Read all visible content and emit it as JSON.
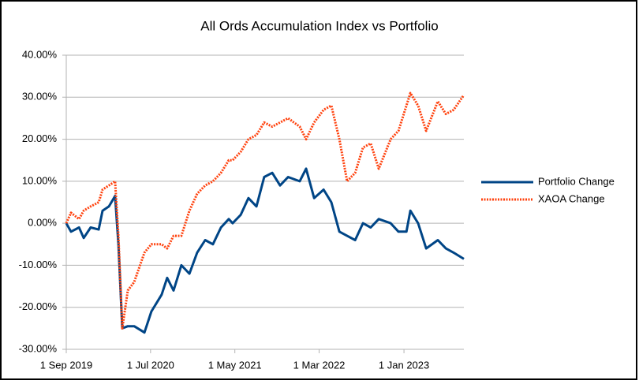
{
  "chart_data": {
    "type": "line",
    "title": "All Ords Accumulation Index vs Portfolio",
    "x": [
      "2019-09-01",
      "2019-09-18",
      "2019-10-17",
      "2019-11-03",
      "2019-11-28",
      "2019-12-27",
      "2020-01-10",
      "2020-02-02",
      "2020-02-24",
      "2020-03-07",
      "2020-03-21",
      "2020-04-10",
      "2020-05-03",
      "2020-06-09",
      "2020-07-04",
      "2020-08-10",
      "2020-08-30",
      "2020-09-22",
      "2020-10-20",
      "2020-11-18",
      "2020-12-16",
      "2021-01-14",
      "2021-02-11",
      "2021-03-12",
      "2021-04-09",
      "2021-04-23",
      "2021-05-22",
      "2021-06-19",
      "2021-07-18",
      "2021-08-15",
      "2021-09-13",
      "2021-10-11",
      "2021-11-09",
      "2021-12-21",
      "2022-01-13",
      "2022-02-11",
      "2022-03-17",
      "2022-04-14",
      "2022-05-13",
      "2022-06-10",
      "2022-07-09",
      "2022-08-06",
      "2022-09-03",
      "2022-10-02",
      "2022-11-14",
      "2022-12-12",
      "2023-01-10",
      "2023-01-24",
      "2023-02-21",
      "2023-03-22",
      "2023-05-03",
      "2023-06-01",
      "2023-06-29",
      "2023-08-05"
    ],
    "series": [
      {
        "name": "Portfolio Change",
        "color": "#004586",
        "style": "solid",
        "values": [
          0,
          -2,
          -1,
          -3.5,
          -1,
          -1.5,
          3,
          4,
          6.5,
          -5,
          -25,
          -24.5,
          -24.5,
          -26,
          -21,
          -17,
          -13,
          -16,
          -10,
          -12,
          -7,
          -4,
          -5,
          -1,
          1,
          0,
          2,
          6,
          4,
          11,
          12,
          9,
          11,
          10,
          13,
          6,
          8,
          5,
          -2,
          -3,
          -4,
          0,
          -1,
          1,
          0,
          -2,
          -2,
          3,
          0,
          -6,
          -4,
          -6,
          -7,
          -8.5
        ]
      },
      {
        "name": "XAOA Change",
        "color": "#ff420e",
        "style": "dotted",
        "values": [
          0,
          2.5,
          1,
          3,
          4,
          5,
          8,
          9,
          10,
          -3,
          -25,
          -16,
          -14,
          -7,
          -5,
          -5,
          -6,
          -3,
          -3,
          3,
          7,
          9,
          10,
          12,
          15,
          15,
          17,
          20,
          21,
          24,
          23,
          24,
          25,
          23,
          20,
          24,
          27,
          28,
          20,
          10,
          12,
          18,
          19,
          13,
          20,
          22,
          28,
          31,
          28,
          22,
          29,
          26,
          27,
          30.5
        ]
      }
    ],
    "xlim": [
      "2019-09-01",
      "2023-08-05"
    ],
    "xticks": [
      {
        "value": "2019-09-01",
        "label": "1 Sep 2019"
      },
      {
        "value": "2020-07-01",
        "label": "1 Jul 2020"
      },
      {
        "value": "2021-05-01",
        "label": "1 May 2021"
      },
      {
        "value": "2022-03-01",
        "label": "1 Mar 2022"
      },
      {
        "value": "2023-01-01",
        "label": "1 Jan 2023"
      }
    ],
    "ylim": [
      -30,
      40
    ],
    "yticks": [
      {
        "value": -30,
        "label": "-30.00%"
      },
      {
        "value": -20,
        "label": "-20.00%"
      },
      {
        "value": -10,
        "label": "-10.00%"
      },
      {
        "value": 0,
        "label": "0.00%"
      },
      {
        "value": 10,
        "label": "10.00%"
      },
      {
        "value": 20,
        "label": "20.00%"
      },
      {
        "value": 30,
        "label": "30.00%"
      },
      {
        "value": 40,
        "label": "40.00%"
      }
    ],
    "grid": true,
    "legend": "right"
  }
}
